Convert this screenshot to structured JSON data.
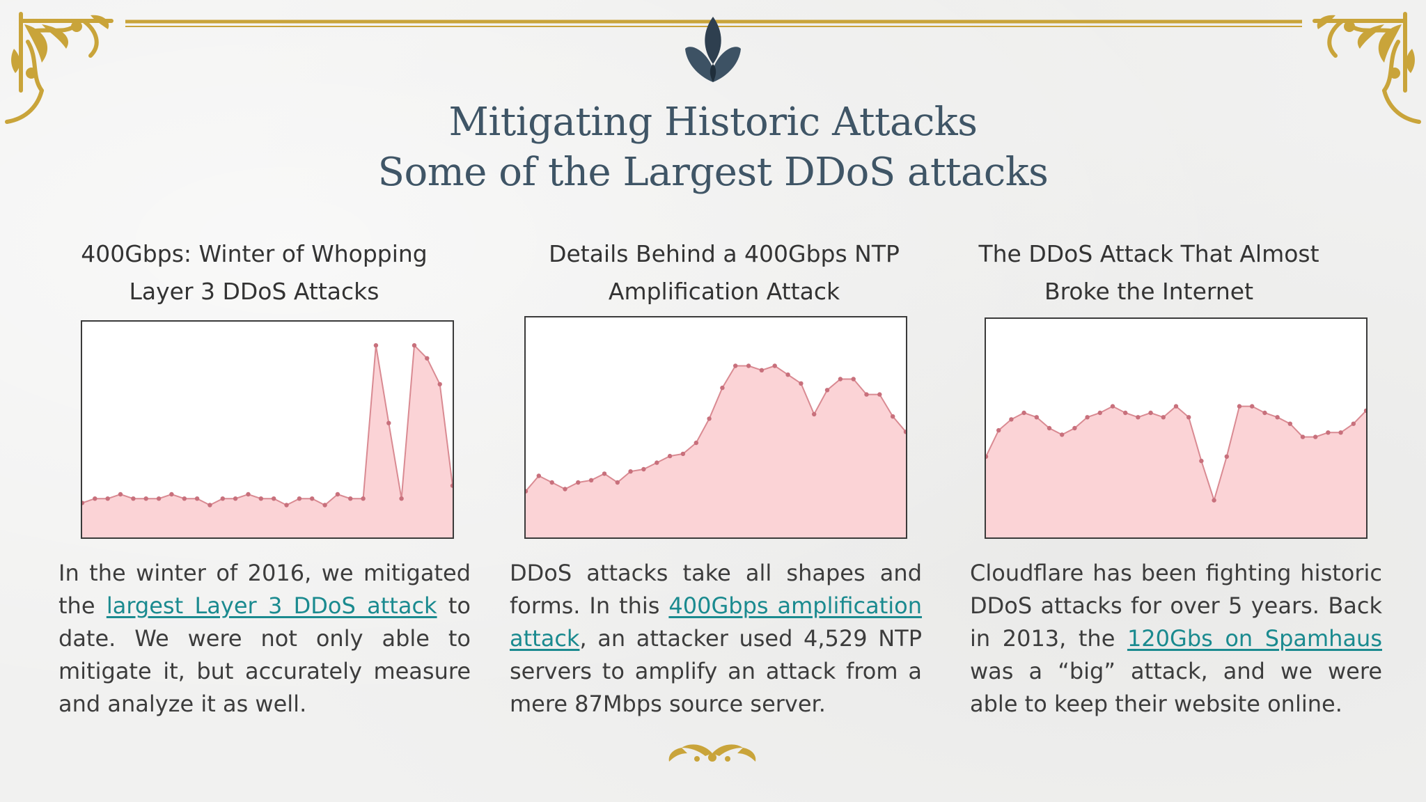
{
  "title": {
    "line1": "Mitigating Historic Attacks",
    "line2": "Some of the Largest DDoS attacks"
  },
  "colors": {
    "title": "#3f5566",
    "link": "#1a8a8f",
    "gold": "#c9a43a",
    "chart_fill": "#fbd3d6",
    "chart_line": "#d98a92",
    "chart_point": "#c8707c",
    "emblem": "#2e3f4f"
  },
  "icons": {
    "top_left": "ornament-corner-icon",
    "top_right": "ornament-corner-icon",
    "top_center": "lotus-emblem-icon",
    "bottom_center": "flourish-ornament-icon"
  },
  "columns": [
    {
      "heading_line1": "400Gbps: Winter of Whopping",
      "heading_line2": "Layer 3 DDoS Attacks",
      "text_before": "In the winter of 2016, we mitigated the ",
      "link": "largest Layer 3 DDoS attack",
      "text_after": " to date. We were not only able to mitigate it, but accurately measure and analyze it as well."
    },
    {
      "heading_line1": "Details Behind a 400Gbps NTP",
      "heading_line2": "Amplification Attack",
      "text_before": "DDoS attacks take all shapes and forms. In this ",
      "link": "400Gbps amplification attack",
      "text_after": ", an attacker used 4,529 NTP servers to amplify an attack from a mere 87Mbps source server."
    },
    {
      "heading_line1": "The DDoS Attack That Almost",
      "heading_line2": "Broke the Internet",
      "text_before": "Cloudflare has been fighting historic DDoS attacks for over 5 years. Back in 2013, the ",
      "link": "120Gbs on Spamhaus",
      "text_after": " was a “big” attack, and we were able to keep their website online."
    }
  ],
  "chart_data": [
    {
      "type": "area",
      "values": [
        0.16,
        0.18,
        0.18,
        0.2,
        0.18,
        0.18,
        0.18,
        0.2,
        0.18,
        0.18,
        0.15,
        0.18,
        0.18,
        0.2,
        0.18,
        0.18,
        0.15,
        0.18,
        0.18,
        0.15,
        0.2,
        0.18,
        0.18,
        0.89,
        0.53,
        0.18,
        0.89,
        0.83,
        0.71,
        0.24
      ],
      "ylim": [
        0,
        1
      ],
      "grid": false
    },
    {
      "type": "area",
      "values": [
        0.21,
        0.28,
        0.25,
        0.22,
        0.25,
        0.26,
        0.29,
        0.25,
        0.3,
        0.31,
        0.34,
        0.37,
        0.38,
        0.43,
        0.54,
        0.68,
        0.78,
        0.78,
        0.76,
        0.78,
        0.74,
        0.7,
        0.56,
        0.67,
        0.72,
        0.72,
        0.65,
        0.65,
        0.55,
        0.48
      ],
      "ylim": [
        0,
        1
      ],
      "grid": false
    },
    {
      "type": "area",
      "values": [
        0.37,
        0.49,
        0.54,
        0.57,
        0.55,
        0.5,
        0.47,
        0.5,
        0.55,
        0.57,
        0.6,
        0.57,
        0.55,
        0.57,
        0.55,
        0.6,
        0.55,
        0.35,
        0.17,
        0.37,
        0.6,
        0.6,
        0.57,
        0.55,
        0.52,
        0.46,
        0.46,
        0.48,
        0.48,
        0.52,
        0.58
      ],
      "ylim": [
        0,
        1
      ],
      "grid": false
    }
  ]
}
